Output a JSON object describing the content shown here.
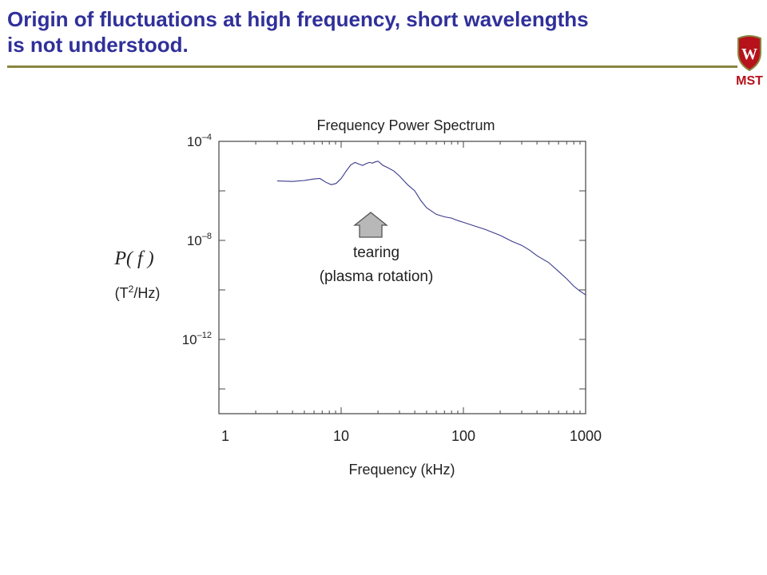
{
  "slide": {
    "title_line1": "Origin of fluctuations at high frequency, short wavelengths",
    "title_line2": "is not understood.",
    "logo_text": "MST",
    "logo_letter": "W",
    "title_color": "#30309a",
    "rule_color": "#8a8440",
    "logo_color": "#b5121b"
  },
  "chart_data": {
    "type": "line",
    "title": "Frequency Power Spectrum",
    "xlabel": "Frequency (kHz)",
    "ylabel_main": "P( f )",
    "ylabel_unit_pre": "(T",
    "ylabel_unit_sup": "2",
    "ylabel_unit_post": "/Hz)",
    "x_scale": "log",
    "y_scale": "log",
    "xlim": [
      1,
      1000
    ],
    "ylim_exp": [
      -15,
      -4
    ],
    "x_tick_labels": [
      {
        "value": 1,
        "label": "1"
      },
      {
        "value": 10,
        "label": "10"
      },
      {
        "value": 100,
        "label": "100"
      },
      {
        "value": 1000,
        "label": "1000"
      }
    ],
    "y_tick_labels": [
      {
        "exp": -4,
        "base": "10",
        "sup": "–4"
      },
      {
        "exp": -8,
        "base": "10",
        "sup": "–8"
      },
      {
        "exp": -12,
        "base": "10",
        "sup": "–12"
      }
    ],
    "line_color": "#3a3a8c",
    "series": [
      {
        "x": [
          3,
          4,
          5,
          6,
          6.7,
          7.5,
          8.3,
          9.1,
          10,
          11,
          12,
          13,
          14,
          15,
          16,
          17,
          18,
          19,
          20,
          22,
          24,
          27,
          30,
          35,
          40,
          45,
          50,
          60,
          70,
          80,
          90,
          100,
          120,
          150,
          200,
          250,
          300,
          350,
          400,
          500,
          600,
          700,
          800,
          900,
          1000
        ],
        "y_exp": [
          -5.6,
          -5.62,
          -5.58,
          -5.52,
          -5.5,
          -5.65,
          -5.75,
          -5.7,
          -5.5,
          -5.2,
          -4.95,
          -4.85,
          -4.92,
          -4.97,
          -4.9,
          -4.85,
          -4.88,
          -4.83,
          -4.8,
          -4.97,
          -5.06,
          -5.2,
          -5.4,
          -5.75,
          -6.0,
          -6.4,
          -6.68,
          -6.95,
          -7.05,
          -7.1,
          -7.2,
          -7.27,
          -7.4,
          -7.55,
          -7.8,
          -8.04,
          -8.2,
          -8.4,
          -8.62,
          -8.9,
          -9.25,
          -9.55,
          -9.85,
          -10.05,
          -10.2
        ]
      }
    ],
    "annotation_line1": "tearing",
    "annotation_line2": "(plasma rotation)"
  }
}
